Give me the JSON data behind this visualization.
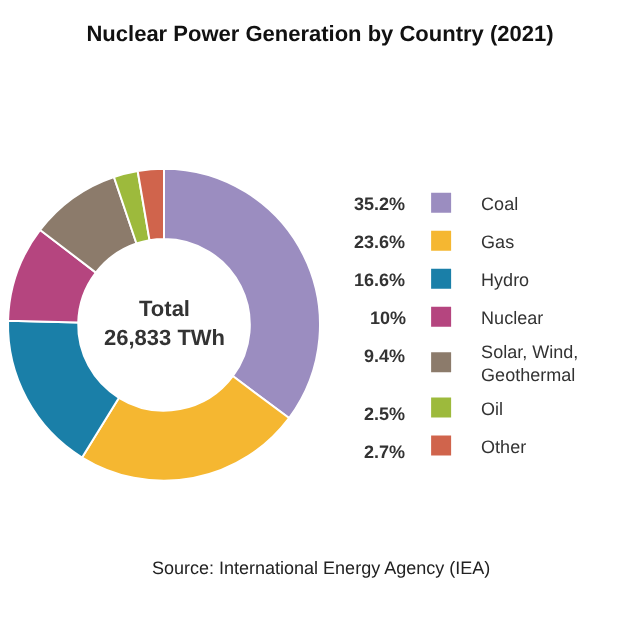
{
  "chart_data": {
    "type": "donut",
    "title": "Nuclear Power Generation by Country (2021)",
    "categories": [
      "Coal",
      "Gas",
      "Hydro",
      "Nuclear",
      "Solar, Wind, Geothermal",
      "Oil",
      "Other"
    ],
    "values": [
      35.2,
      23.6,
      16.6,
      10,
      9.4,
      2.5,
      2.7
    ],
    "value_labels": [
      "35.2%",
      "23.6%",
      "16.6%",
      "10%",
      "9.4%",
      "2.5%",
      "2.7%"
    ],
    "colors": [
      "#9b8dc0",
      "#f5b731",
      "#1a7fa8",
      "#b5457f",
      "#8c7b6b",
      "#9dba3c",
      "#d0644c"
    ],
    "annotations": [
      "Total\n26,833 TWh",
      "Source: International Energy Agency (IEA)"
    ],
    "legend": "right"
  }
}
